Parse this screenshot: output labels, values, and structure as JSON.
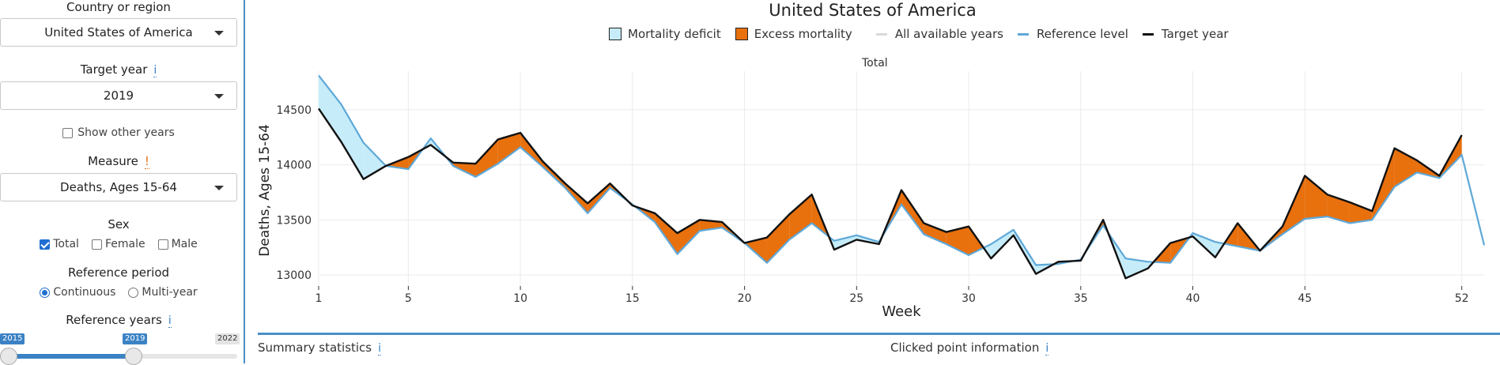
{
  "sidebar": {
    "country_label": "Country or region",
    "country_value": "United States of America",
    "target_year_label": "Target year",
    "target_year_value": "2019",
    "show_other_years_label": "Show other years",
    "measure_label": "Measure",
    "measure_warning": "!",
    "measure_value": "Deaths, Ages 15-64",
    "sex_label": "Sex",
    "sex_options": [
      "Total",
      "Female",
      "Male"
    ],
    "reference_period_label": "Reference period",
    "reference_period_options": [
      "Continuous",
      "Multi-year"
    ],
    "reference_years_label": "Reference years",
    "reference_years_min": "2015",
    "reference_years_value": "2019",
    "reference_years_max": "2022",
    "info_glyph": "i"
  },
  "main": {
    "title": "United States of America",
    "subtitle": "Total",
    "legend": [
      {
        "label": "Mortality deficit",
        "color": "#c6ecf9"
      },
      {
        "label": "Excess mortality",
        "color": "#e8700d"
      },
      {
        "label": "All available years",
        "color": "#d9d9d9"
      },
      {
        "label": "Reference level",
        "color": "#5ea8d8"
      },
      {
        "label": "Target year",
        "color": "#111111"
      }
    ],
    "summary_label": "Summary statistics",
    "clicked_label": "Clicked point information"
  },
  "chart_data": {
    "type": "area",
    "title": "United States of America",
    "subtitle": "Total",
    "xlabel": "Week",
    "ylabel": "Deaths, Ages 15-64",
    "xlim": [
      1,
      53
    ],
    "ylim": [
      12900,
      14850
    ],
    "xticks": [
      1,
      5,
      10,
      15,
      20,
      25,
      30,
      35,
      40,
      45,
      52
    ],
    "yticks": [
      13000,
      13500,
      14000,
      14500
    ],
    "grid": true,
    "legend_position": "top",
    "x": [
      1,
      2,
      3,
      4,
      5,
      6,
      7,
      8,
      9,
      10,
      11,
      12,
      13,
      14,
      15,
      16,
      17,
      18,
      19,
      20,
      21,
      22,
      23,
      24,
      25,
      26,
      27,
      28,
      29,
      30,
      31,
      32,
      33,
      34,
      35,
      36,
      37,
      38,
      39,
      40,
      41,
      42,
      43,
      44,
      45,
      46,
      47,
      48,
      49,
      50,
      51,
      52,
      53
    ],
    "series": [
      {
        "name": "Target year",
        "color": "#111111",
        "values": [
          14510,
          14210,
          13870,
          13990,
          14070,
          14180,
          14020,
          14010,
          14230,
          14290,
          14030,
          13830,
          13650,
          13830,
          13630,
          13560,
          13380,
          13500,
          13480,
          13290,
          13340,
          13550,
          13730,
          13230,
          13320,
          13280,
          13770,
          13470,
          13390,
          13440,
          13150,
          13360,
          13010,
          13120,
          13130,
          13500,
          12970,
          13060,
          13290,
          13350,
          13160,
          13470,
          13220,
          13440,
          13900,
          13730,
          13660,
          13580,
          14150,
          14040,
          13900,
          14270,
          null
        ]
      },
      {
        "name": "Reference level",
        "color": "#5ea8d8",
        "values": [
          14810,
          14550,
          14200,
          13990,
          13960,
          14240,
          13990,
          13890,
          14010,
          14160,
          13980,
          13790,
          13560,
          13790,
          13640,
          13480,
          13190,
          13400,
          13430,
          13290,
          13110,
          13320,
          13470,
          13310,
          13360,
          13300,
          13640,
          13370,
          13280,
          13180,
          13280,
          13410,
          13090,
          13100,
          13140,
          13450,
          13150,
          13120,
          13110,
          13380,
          13300,
          13260,
          13220,
          13370,
          13510,
          13530,
          13470,
          13500,
          13800,
          13930,
          13880,
          14090,
          13270
        ]
      }
    ]
  }
}
